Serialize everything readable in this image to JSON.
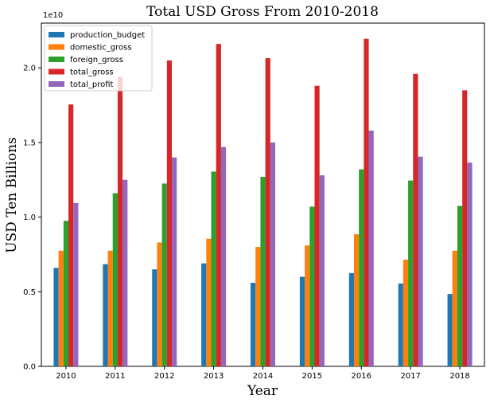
{
  "chart_data": {
    "type": "bar",
    "title": "Total USD Gross From 2010-2018",
    "xlabel": "Year",
    "ylabel": "USD Ten Billions",
    "offset_text": "1e10",
    "categories": [
      "2010",
      "2011",
      "2012",
      "2013",
      "2014",
      "2015",
      "2016",
      "2017",
      "2018"
    ],
    "ylim": [
      0,
      2.3
    ],
    "yticks": [
      0.0,
      0.5,
      1.0,
      1.5,
      2.0
    ],
    "ytick_labels": [
      "0.0",
      "0.5",
      "1.0",
      "1.5",
      "2.0"
    ],
    "legend_position": "upper-left",
    "series": [
      {
        "name": "production_budget",
        "color": "#1f77b4",
        "values": [
          0.66,
          0.685,
          0.65,
          0.69,
          0.56,
          0.6,
          0.625,
          0.555,
          0.485
        ]
      },
      {
        "name": "domestic_gross",
        "color": "#ff7f0e",
        "values": [
          0.775,
          0.775,
          0.83,
          0.855,
          0.8,
          0.81,
          0.885,
          0.715,
          0.775
        ]
      },
      {
        "name": "foreign_gross",
        "color": "#2ca02c",
        "values": [
          0.975,
          1.16,
          1.225,
          1.305,
          1.27,
          1.07,
          1.32,
          1.245,
          1.075
        ]
      },
      {
        "name": "total_gross",
        "color": "#d62728",
        "values": [
          1.755,
          1.94,
          2.05,
          2.16,
          2.065,
          1.88,
          2.195,
          1.96,
          1.85
        ]
      },
      {
        "name": "total_profit",
        "color": "#9467bd",
        "values": [
          1.095,
          1.25,
          1.4,
          1.47,
          1.5,
          1.28,
          1.58,
          1.405,
          1.365
        ]
      }
    ]
  }
}
